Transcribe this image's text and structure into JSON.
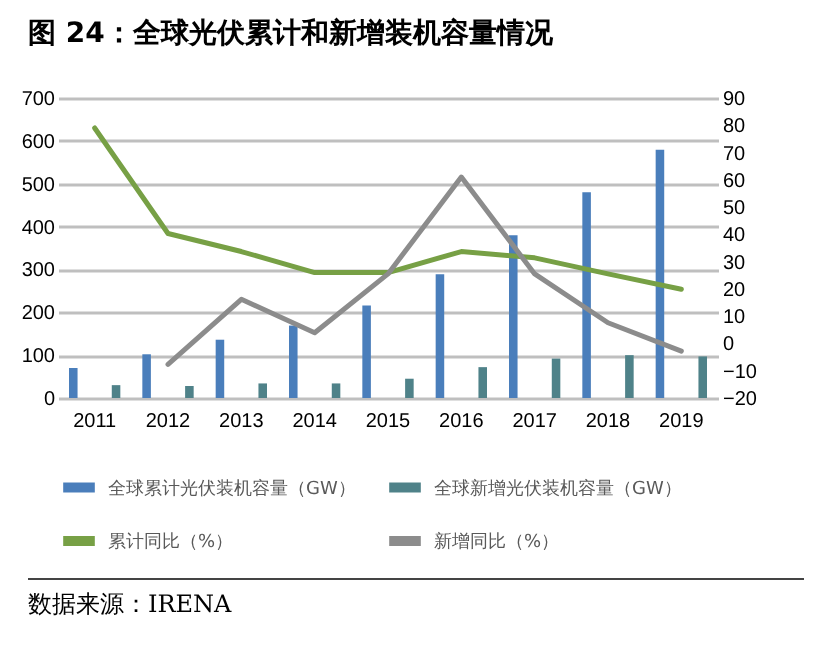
{
  "chart_data": {
    "type": "bar",
    "title": "图 24：全球光伏累计和新增装机容量情况",
    "annotations": [
      "数据来源：IRENA"
    ],
    "categories": [
      "2011",
      "2012",
      "2013",
      "2014",
      "2015",
      "2016",
      "2017",
      "2018",
      "2019"
    ],
    "series": [
      {
        "name": "全球累计光伏装机容量（GW）",
        "color": "#4a7ebb",
        "values": [
          70,
          102,
          136,
          169,
          216,
          289,
          380,
          480,
          579
        ]
      },
      {
        "name": "全球新增光伏装机容量（GW）",
        "color": "#4f8289",
        "values": [
          30,
          28,
          34,
          34,
          45,
          72,
          92,
          100,
          97
        ]
      },
      {
        "name": "累计同比（%）",
        "type": "line",
        "axis": "y2",
        "color": "#77a045",
        "values": [
          79,
          40.3,
          33.7,
          26,
          26,
          33.7,
          31.4,
          25.5,
          19.9
        ]
      },
      {
        "name": "新增同比（%）",
        "type": "line",
        "axis": "y2",
        "color": "#8c8c8c",
        "values": [
          null,
          -7.7,
          16.2,
          3.9,
          25.5,
          61,
          25.5,
          7.6,
          -2.8
        ]
      }
    ],
    "ylim": [
      0,
      700
    ],
    "yticks": [
      0,
      100,
      200,
      300,
      400,
      500,
      600,
      700
    ],
    "y2lim": [
      -20,
      90
    ],
    "y2ticks": [
      -20,
      -10,
      0,
      10,
      20,
      30,
      40,
      50,
      60,
      70,
      80,
      90
    ],
    "grid": "y",
    "legend": "bottom"
  }
}
